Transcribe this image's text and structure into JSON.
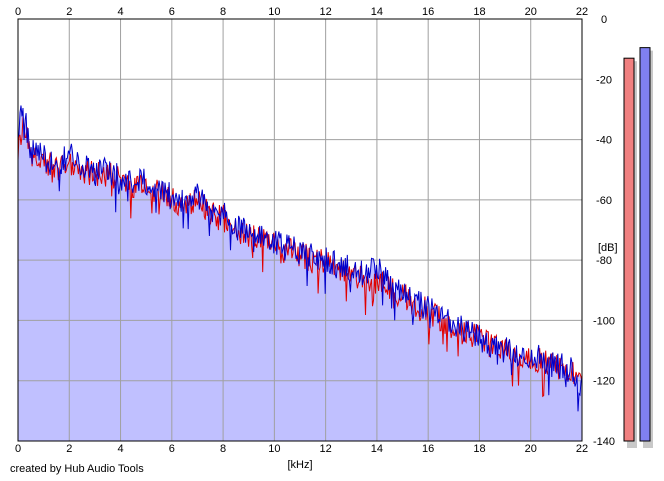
{
  "footer": {
    "credit": "created by Hub Audio Tools"
  },
  "chart_data": {
    "type": "area",
    "xlabel": "[kHz]",
    "ylabel": "[dB]",
    "xlim": [
      0,
      22
    ],
    "ylim": [
      -140,
      0
    ],
    "x_ticks": [
      0,
      2,
      4,
      6,
      8,
      10,
      12,
      14,
      16,
      18,
      20,
      22
    ],
    "y_ticks": [
      0,
      -20,
      -40,
      -60,
      -80,
      -100,
      -120,
      -140
    ],
    "grid": true,
    "series": [
      {
        "color": "#e00000",
        "x": [
          0,
          0.2,
          0.5,
          1,
          1.5,
          2,
          2.5,
          3,
          3.5,
          4,
          4.5,
          5,
          5.5,
          6,
          6.5,
          7,
          7.5,
          8,
          8.5,
          9,
          9.5,
          10,
          10.5,
          11,
          11.5,
          12,
          12.5,
          13,
          13.5,
          14,
          14.5,
          15,
          15.5,
          16,
          16.5,
          17,
          17.5,
          18,
          18.5,
          19,
          19.5,
          20,
          20.5,
          21,
          21.5,
          22
        ],
        "values": [
          -38,
          -34,
          -46,
          -47,
          -50,
          -47,
          -50,
          -52,
          -51,
          -54,
          -55,
          -55,
          -58,
          -60,
          -62,
          -59,
          -65,
          -66,
          -70,
          -71,
          -74,
          -75,
          -77,
          -78,
          -80,
          -81,
          -83,
          -84,
          -86,
          -87,
          -89,
          -92,
          -95,
          -97,
          -100,
          -102,
          -104,
          -106,
          -109,
          -110,
          -112,
          -113,
          -114,
          -115,
          -116,
          -119
        ]
      },
      {
        "color": "#0000cc",
        "x": [
          0,
          0.2,
          0.5,
          1,
          1.5,
          2,
          2.5,
          3,
          3.5,
          4,
          4.5,
          5,
          5.5,
          6,
          6.5,
          7,
          7.5,
          8,
          8.5,
          9,
          9.5,
          10,
          10.5,
          11,
          11.5,
          12,
          12.5,
          13,
          13.5,
          14,
          14.5,
          15,
          15.5,
          16,
          16.5,
          17,
          17.5,
          18,
          18.5,
          19,
          19.5,
          20,
          20.5,
          21,
          21.5,
          22
        ],
        "values": [
          -35,
          -29,
          -44,
          -46,
          -49,
          -45,
          -49,
          -51,
          -50,
          -53,
          -54,
          -54,
          -57,
          -59,
          -61,
          -58,
          -64,
          -65,
          -69,
          -70,
          -73,
          -74,
          -76,
          -77,
          -79,
          -80,
          -82,
          -83,
          -85,
          -82,
          -88,
          -91,
          -94,
          -96,
          -99,
          -101,
          -103,
          -106,
          -108,
          -110,
          -111,
          -112,
          -113,
          -115,
          -116,
          -121
        ]
      }
    ],
    "level_meters": [
      {
        "color": "#f08080",
        "value": -13
      },
      {
        "color": "#8080f0",
        "value": -9.5
      }
    ],
    "fill_color": "#c0c0ff"
  }
}
